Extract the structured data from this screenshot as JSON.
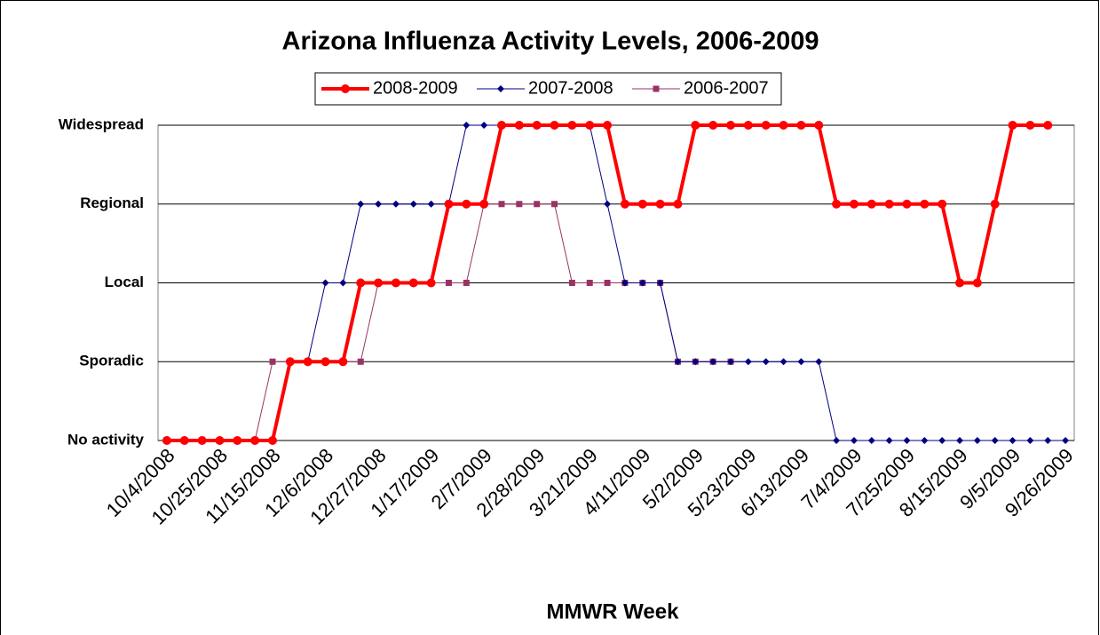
{
  "chart_data": {
    "type": "line",
    "title": "Arizona Influenza Activity Levels, 2006-2009",
    "x_label": "MMWR Week",
    "categories": [
      "10/4/2008",
      null,
      null,
      "10/25/2008",
      null,
      null,
      "11/15/2008",
      null,
      null,
      "12/6/2008",
      null,
      null,
      "12/27/2008",
      null,
      null,
      "1/17/2009",
      null,
      null,
      "2/7/2009",
      null,
      null,
      "2/28/2009",
      null,
      null,
      "3/21/2009",
      null,
      null,
      "4/11/2009",
      null,
      null,
      "5/2/2009",
      null,
      null,
      "5/23/2009",
      null,
      null,
      "6/13/2009",
      null,
      null,
      "7/4/2009",
      null,
      null,
      "7/25/2009",
      null,
      null,
      "8/15/2009",
      null,
      null,
      "9/5/2009",
      null,
      null,
      "9/26/2009"
    ],
    "series": [
      {
        "name": "2008-2009",
        "color": "#ff0000",
        "marker": "circle",
        "line_width": 4,
        "values": [
          0,
          0,
          0,
          0,
          0,
          0,
          0,
          1,
          1,
          1,
          1,
          2,
          2,
          2,
          2,
          2,
          3,
          3,
          3,
          4,
          4,
          4,
          4,
          4,
          4,
          4,
          3,
          3,
          3,
          3,
          4,
          4,
          4,
          4,
          4,
          4,
          4,
          4,
          3,
          3,
          3,
          3,
          3,
          3,
          3,
          2,
          2,
          3,
          4,
          4,
          4,
          null
        ]
      },
      {
        "name": "2007-2008",
        "color": "#000080",
        "marker": "diamond",
        "line_width": 1,
        "values": [
          0,
          0,
          0,
          0,
          0,
          0,
          0,
          1,
          1,
          2,
          2,
          3,
          3,
          3,
          3,
          3,
          3,
          4,
          4,
          4,
          4,
          4,
          4,
          4,
          4,
          3,
          2,
          2,
          2,
          1,
          1,
          1,
          1,
          1,
          1,
          1,
          1,
          1,
          0,
          0,
          0,
          0,
          0,
          0,
          0,
          0,
          0,
          0,
          0,
          0,
          0,
          0
        ]
      },
      {
        "name": "2006-2007",
        "color": "#993366",
        "marker": "square",
        "line_width": 1,
        "values": [
          0,
          0,
          0,
          0,
          0,
          0,
          1,
          1,
          1,
          1,
          1,
          1,
          2,
          2,
          2,
          2,
          2,
          2,
          3,
          3,
          3,
          3,
          3,
          2,
          2,
          2,
          2,
          2,
          2,
          1,
          1,
          1,
          1,
          null,
          null,
          null,
          null,
          null,
          null,
          null,
          null,
          null,
          null,
          null,
          null,
          null,
          null,
          null,
          null,
          null,
          null,
          null
        ]
      }
    ],
    "ylim": [
      0,
      4
    ],
    "yticks": [
      {
        "value": 0,
        "label": "No activity"
      },
      {
        "value": 1,
        "label": "Sporadic"
      },
      {
        "value": 2,
        "label": "Local"
      },
      {
        "value": 3,
        "label": "Regional"
      },
      {
        "value": 4,
        "label": "Widespread"
      }
    ],
    "grid": true,
    "legend": "top"
  }
}
